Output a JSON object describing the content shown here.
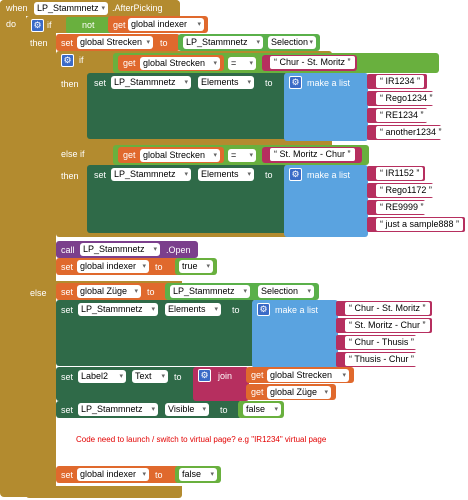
{
  "event": {
    "when": "when",
    "component": "LP_Stammnetz",
    "event_name": ".AfterPicking",
    "do": "do"
  },
  "if_block": {
    "if": "if",
    "not": "not",
    "get": "get",
    "indexer_var": "global indexer",
    "then": "then"
  },
  "set_strecken": {
    "set": "set",
    "var": "global Strecken",
    "to": "to",
    "component": "LP_Stammnetz",
    "prop": "Selection"
  },
  "inner_if": {
    "if": "if",
    "get": "get",
    "var": "global Strecken",
    "eq": "=",
    "value": "Chur - St. Moritz",
    "then": "then",
    "set": "set",
    "component": "LP_Stammnetz",
    "prop": "Elements",
    "to": "to",
    "make_list": "make a list",
    "items": [
      "IR1234",
      "Rego1234",
      "RE1234",
      "another1234"
    ]
  },
  "else_if": {
    "label": "else if",
    "get": "get",
    "var": "global Strecken",
    "eq": "=",
    "value": "St. Moritz - Chur",
    "then": "then",
    "set": "set",
    "component": "LP_Stammnetz",
    "prop": "Elements",
    "to": "to",
    "make_list": "make a list",
    "items": [
      "IR1152",
      "Rego1172",
      "RE9999",
      "just a sample888"
    ]
  },
  "call_open": {
    "call": "call",
    "component": "LP_Stammnetz",
    "method": ".Open"
  },
  "set_indexer_true": {
    "set": "set",
    "var": "global indexer",
    "to": "to",
    "value": "true"
  },
  "else_block": {
    "else": "else",
    "set_zuge": {
      "set": "set",
      "var": "global Züge",
      "to": "to",
      "component": "LP_Stammnetz",
      "prop": "Selection"
    },
    "set_elements": {
      "set": "set",
      "component": "LP_Stammnetz",
      "prop": "Elements",
      "to": "to",
      "make_list": "make a list",
      "items": [
        "Chur - St. Moritz",
        "St. Moritz - Chur",
        "Chur - Thusis",
        "Thusis - Chur"
      ]
    },
    "set_label": {
      "set": "set",
      "component": "Label2",
      "prop": "Text",
      "to": "to",
      "join": "join",
      "get1": "get",
      "var1": "global Strecken",
      "get2": "get",
      "var2": "global Züge"
    },
    "set_visible": {
      "set": "set",
      "component": "LP_Stammnetz",
      "prop": "Visible",
      "to": "to",
      "value": "false"
    }
  },
  "note": "Code need to launch / switch to virtual page?  e.g \"IR1234\" virtual page",
  "set_indexer_false": {
    "set": "set",
    "var": "global indexer",
    "to": "to",
    "value": "false"
  },
  "colors": {
    "event": "#b38b2f",
    "control": "#b38b2f",
    "variable": "#e0692d",
    "component_set": "#2f6a48",
    "component_get": "#5ab04a",
    "list": "#5aa3e0",
    "text": "#b62f5f",
    "logic": "#69b03e",
    "method": "#7b3f8c"
  }
}
